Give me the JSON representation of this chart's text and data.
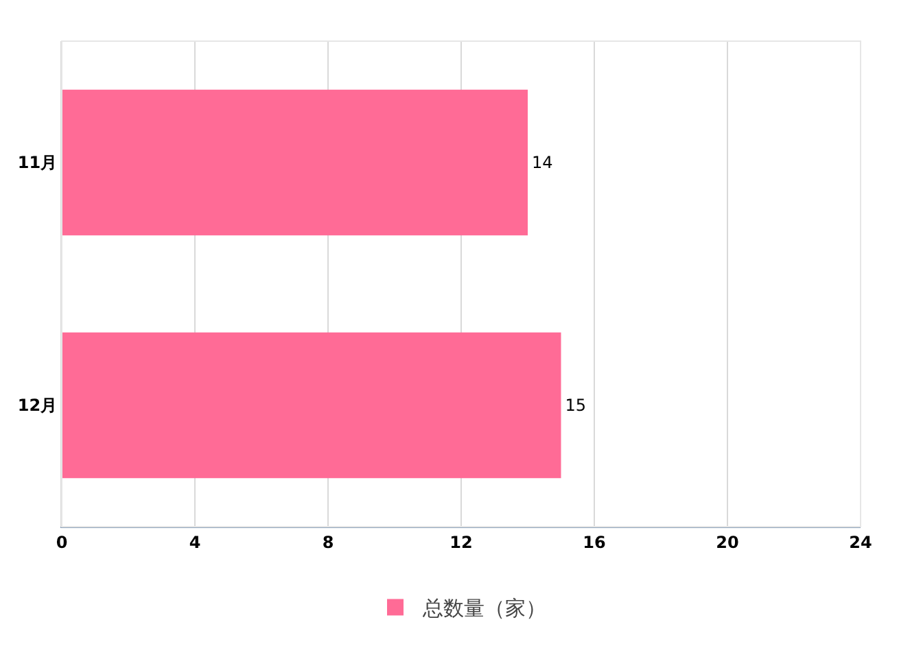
{
  "chart_data": {
    "type": "bar",
    "orientation": "horizontal",
    "categories": [
      "11月",
      "12月"
    ],
    "series": [
      {
        "name": "总数量（家）",
        "color": "#ff6b96",
        "values": [
          14,
          15
        ]
      }
    ],
    "xlim": [
      0,
      24
    ],
    "xticks": [
      0,
      4,
      8,
      12,
      16,
      20,
      24
    ],
    "grid": "x",
    "legend": "bottom",
    "data_labels": true
  }
}
